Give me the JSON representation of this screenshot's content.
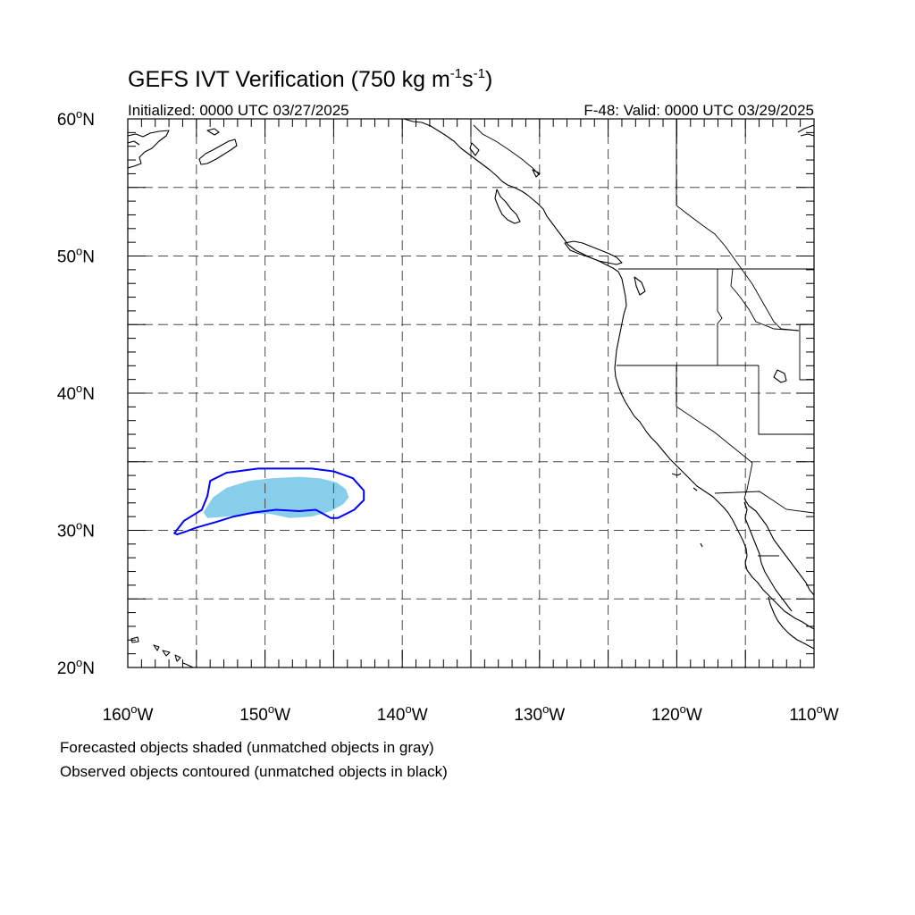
{
  "title_main": "GEFS IVT Verification (750 kg m",
  "title_sup1": "-1",
  "title_mid": "s",
  "title_sup2": "-1",
  "title_end": ")",
  "initialized": "Initialized: 0000 UTC 03/27/2025",
  "valid": "F-48: Valid: 0000 UTC 03/29/2025",
  "lat_labels": [
    {
      "deg": "60",
      "hemi": "N",
      "value": 60
    },
    {
      "deg": "50",
      "hemi": "N",
      "value": 50
    },
    {
      "deg": "40",
      "hemi": "N",
      "value": 40
    },
    {
      "deg": "30",
      "hemi": "N",
      "value": 30
    },
    {
      "deg": "20",
      "hemi": "N",
      "value": 20
    }
  ],
  "lon_labels": [
    {
      "deg": "160",
      "hemi": "W",
      "value": -160
    },
    {
      "deg": "150",
      "hemi": "W",
      "value": -150
    },
    {
      "deg": "140",
      "hemi": "W",
      "value": -140
    },
    {
      "deg": "130",
      "hemi": "W",
      "value": -130
    },
    {
      "deg": "120",
      "hemi": "W",
      "value": -120
    },
    {
      "deg": "110",
      "hemi": "W",
      "value": -110
    }
  ],
  "note_forecast": "Forecasted objects shaded (unmatched objects in gray)",
  "note_observed": "Observed objects contoured (unmatched objects in black)",
  "extent": {
    "lon_min": -160,
    "lon_max": -110,
    "lat_min": 20,
    "lat_max": 60
  },
  "colors": {
    "forecast_fill": "#87ceeb",
    "observed_contour": "#0000ff",
    "coast": "#000000",
    "grid": "#4a4a4a"
  },
  "forecast_object": [
    [
      -154.5,
      31.3
    ],
    [
      -153.8,
      32.4
    ],
    [
      -152.8,
      33.1
    ],
    [
      -151.2,
      33.6
    ],
    [
      -149.5,
      33.8
    ],
    [
      -147.5,
      33.9
    ],
    [
      -146.0,
      33.8
    ],
    [
      -144.8,
      33.5
    ],
    [
      -144.1,
      33.0
    ],
    [
      -143.9,
      32.4
    ],
    [
      -144.3,
      31.9
    ],
    [
      -145.2,
      31.4
    ],
    [
      -146.6,
      31.0
    ],
    [
      -148.2,
      30.9
    ],
    [
      -149.6,
      31.2
    ],
    [
      -151.2,
      31.2
    ],
    [
      -152.8,
      31.0
    ],
    [
      -154.2,
      30.9
    ]
  ],
  "observed_object": [
    [
      -156.6,
      29.8
    ],
    [
      -155.9,
      30.7
    ],
    [
      -154.6,
      31.5
    ],
    [
      -154.2,
      32.5
    ],
    [
      -154.0,
      33.6
    ],
    [
      -152.8,
      34.2
    ],
    [
      -150.5,
      34.5
    ],
    [
      -148.5,
      34.5
    ],
    [
      -146.6,
      34.5
    ],
    [
      -145.0,
      34.3
    ],
    [
      -143.6,
      33.8
    ],
    [
      -142.8,
      32.9
    ],
    [
      -142.8,
      32.2
    ],
    [
      -143.5,
      31.5
    ],
    [
      -144.7,
      30.9
    ],
    [
      -145.2,
      30.9
    ],
    [
      -146.3,
      31.5
    ],
    [
      -147.5,
      31.4
    ],
    [
      -149.2,
      31.5
    ],
    [
      -150.8,
      31.3
    ],
    [
      -152.3,
      31.0
    ],
    [
      -153.6,
      30.6
    ],
    [
      -155.0,
      30.2
    ],
    [
      -155.8,
      29.9
    ],
    [
      -156.4,
      29.7
    ]
  ]
}
